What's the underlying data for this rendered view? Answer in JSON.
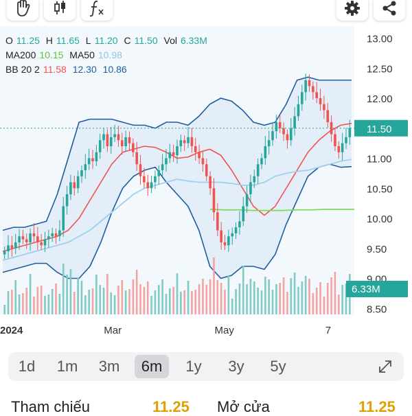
{
  "toolbar": {
    "left_icons": [
      "hand-icon",
      "candlestick-icon",
      "function-icon"
    ],
    "right_icons": [
      "gear-icon",
      "share-icon"
    ]
  },
  "legend": {
    "ohlc": {
      "o_label": "O",
      "o": "11.25",
      "h_label": "H",
      "h": "11.65",
      "l_label": "L",
      "l": "11.20",
      "c_label": "C",
      "c": "11.50",
      "vol_label": "Vol",
      "vol": "6.33M"
    },
    "ma": {
      "ma200_label": "MA200",
      "ma200": "10.15",
      "ma50_label": "MA50",
      "ma50": "10.98"
    },
    "bb": {
      "label": "BB 20 2",
      "mid": "11.58",
      "upper": "12.30",
      "lower": "10.86"
    }
  },
  "colors": {
    "up": "#26a69a",
    "down": "#ef5350",
    "ma200": "#7ed957",
    "ma50": "#9ed0ef",
    "bb_mid": "#ef5350",
    "bb_band": "#1e5c9e",
    "price_tag": "#26a69a",
    "highlight": "#e0a100"
  },
  "chart_data": {
    "type": "candlestick",
    "y_ticks": [
      "13.00",
      "12.50",
      "12.00",
      "11.50",
      "11.00",
      "10.50",
      "10.00",
      "9.50",
      "9.00",
      "8.50"
    ],
    "ylim": [
      8.4,
      13.2
    ],
    "x_labels": [
      {
        "label": "2024",
        "month": 0
      },
      {
        "label": "Mar",
        "month": 2
      },
      {
        "label": "May",
        "month": 4
      },
      {
        "label": "7",
        "month": 6
      }
    ],
    "last_price": "11.50",
    "last_volume": "6.33M",
    "close_series": [
      9.45,
      9.55,
      9.5,
      9.6,
      9.7,
      9.65,
      9.6,
      9.75,
      9.7,
      9.6,
      9.55,
      9.65,
      9.7,
      9.75,
      9.7,
      9.8,
      10.2,
      10.4,
      10.6,
      10.5,
      10.7,
      10.8,
      10.9,
      11.0,
      10.95,
      11.1,
      11.3,
      11.4,
      11.2,
      11.35,
      11.4,
      11.3,
      11.2,
      11.35,
      11.25,
      11.1,
      10.9,
      10.7,
      10.6,
      10.5,
      10.6,
      10.7,
      10.8,
      10.9,
      11.0,
      11.1,
      11.05,
      11.2,
      11.3,
      11.25,
      11.35,
      11.2,
      11.1,
      11.0,
      10.9,
      10.7,
      10.5,
      10.1,
      9.8,
      9.6,
      9.55,
      9.7,
      9.75,
      9.85,
      9.95,
      10.2,
      10.4,
      10.6,
      10.7,
      10.9,
      11.0,
      11.2,
      11.3,
      11.45,
      11.6,
      11.5,
      11.4,
      11.3,
      11.5,
      11.7,
      11.9,
      12.1,
      12.3,
      12.2,
      12.1,
      12.0,
      11.9,
      11.8,
      11.6,
      11.4,
      11.2,
      11.1,
      11.25,
      11.35,
      11.5
    ],
    "ma50_series": [
      9.3,
      9.35,
      9.4,
      9.45,
      9.5,
      9.55,
      9.6,
      9.7,
      9.8,
      9.95,
      10.1,
      10.25,
      10.4,
      10.5,
      10.55,
      10.6,
      10.65,
      10.62,
      10.6,
      10.6,
      10.6,
      10.58,
      10.55,
      10.55,
      10.6,
      10.7,
      10.75,
      10.78,
      10.8,
      10.85,
      10.9,
      10.95,
      10.98
    ],
    "ma200_series": [
      10.15,
      10.14,
      10.14,
      10.13,
      10.13,
      10.13,
      10.14,
      10.14,
      10.15,
      10.15,
      10.15
    ],
    "bb_mid_series": [
      9.45,
      9.5,
      9.55,
      9.6,
      9.65,
      9.7,
      9.8,
      10.0,
      10.3,
      10.6,
      10.9,
      11.1,
      11.15,
      11.2,
      11.18,
      11.1,
      11.0,
      11.02,
      11.1,
      11.15,
      11.05,
      10.8,
      10.5,
      10.2,
      10.05,
      10.2,
      10.5,
      10.8,
      11.1,
      11.3,
      11.45,
      11.55,
      11.58
    ],
    "bb_upper_series": [
      9.8,
      9.85,
      9.85,
      9.9,
      9.95,
      10.4,
      11.0,
      11.6,
      11.65,
      11.65,
      11.65,
      11.6,
      11.55,
      11.55,
      11.5,
      11.6,
      11.6,
      11.55,
      11.7,
      11.9,
      12.0,
      11.95,
      11.8,
      11.6,
      11.55,
      11.6,
      11.9,
      12.3,
      12.35,
      12.3,
      12.3,
      12.3,
      12.3
    ],
    "bb_lower_series": [
      9.1,
      9.15,
      9.2,
      9.25,
      9.25,
      9.1,
      9.0,
      9.0,
      9.2,
      9.6,
      10.1,
      10.5,
      10.7,
      10.8,
      10.85,
      10.6,
      10.4,
      10.2,
      9.8,
      9.2,
      9.0,
      9.05,
      9.2,
      9.2,
      9.15,
      9.4,
      9.9,
      10.3,
      10.7,
      10.85,
      10.9,
      10.85,
      10.86
    ]
  },
  "periods": [
    {
      "label": "1d",
      "active": false
    },
    {
      "label": "1m",
      "active": false
    },
    {
      "label": "3m",
      "active": false
    },
    {
      "label": "6m",
      "active": true
    },
    {
      "label": "1y",
      "active": false
    },
    {
      "label": "3y",
      "active": false
    },
    {
      "label": "5y",
      "active": false
    }
  ],
  "stats": {
    "reference_label": "Tham chiếu",
    "reference_value": "11.25",
    "open_label": "Mở cửa",
    "open_value": "11.25"
  }
}
